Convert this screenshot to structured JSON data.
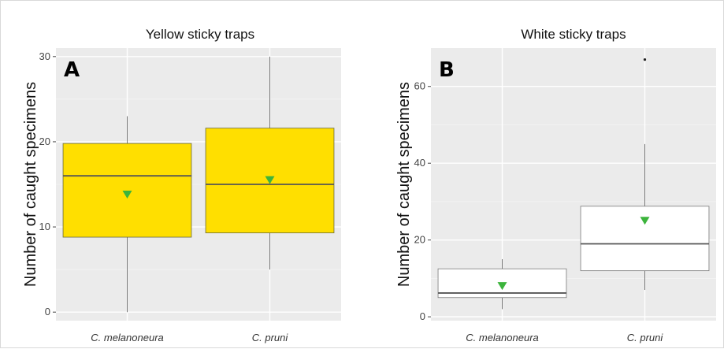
{
  "chart_data": [
    {
      "type": "box",
      "panel_label": "A",
      "title": "Yellow sticky traps",
      "xlabel": "",
      "ylabel": "Number of caught specimens",
      "categories": [
        "C. melanoneura",
        "C. pruni"
      ],
      "ylim": [
        -1,
        31
      ],
      "yticks": [
        0,
        10,
        20,
        30
      ],
      "grid": true,
      "box_fill": "#ffdf00",
      "box_stroke": "#6b6b3a",
      "mean_marker_color": "#3cb43c",
      "boxes": [
        {
          "category": "C. melanoneura",
          "min": 0,
          "q1": 8.8,
          "median": 16,
          "q3": 19.8,
          "max": 23,
          "mean": 13.8,
          "outliers": []
        },
        {
          "category": "C. pruni",
          "min": 5,
          "q1": 9.3,
          "median": 15,
          "q3": 21.6,
          "max": 30,
          "mean": 15.5,
          "outliers": []
        }
      ]
    },
    {
      "type": "box",
      "panel_label": "B",
      "title": "White sticky traps",
      "xlabel": "",
      "ylabel": "Number of caught specimens",
      "categories": [
        "C. melanoneura",
        "C. pruni"
      ],
      "ylim": [
        -1,
        70
      ],
      "yticks": [
        0,
        20,
        40,
        60
      ],
      "grid": true,
      "box_fill": "#ffffff",
      "box_stroke": "#7a7a7a",
      "mean_marker_color": "#3cb43c",
      "boxes": [
        {
          "category": "C. melanoneura",
          "min": 2,
          "q1": 5,
          "median": 6.2,
          "q3": 12.5,
          "max": 15,
          "mean": 8,
          "outliers": []
        },
        {
          "category": "C. pruni",
          "min": 7,
          "q1": 12,
          "median": 19,
          "q3": 28.8,
          "max": 45,
          "mean": 25,
          "outliers": [
            67
          ]
        }
      ]
    }
  ]
}
